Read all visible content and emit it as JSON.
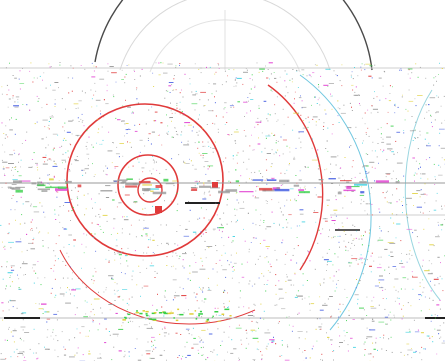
{
  "page": {
    "background": "#ffffff"
  },
  "colors": {
    "ring_dark": "#4a4a4a",
    "ring_light": "#d8d8d8",
    "ring_red": "#e03a3a",
    "noise_gray": "#9a9a9a",
    "noise_blue": "#3a55e0",
    "noise_green": "#3ad04a",
    "noise_magenta": "#e03ad0",
    "noise_cyan": "#3ad0e0",
    "noise_yellow": "#e0d03a"
  }
}
